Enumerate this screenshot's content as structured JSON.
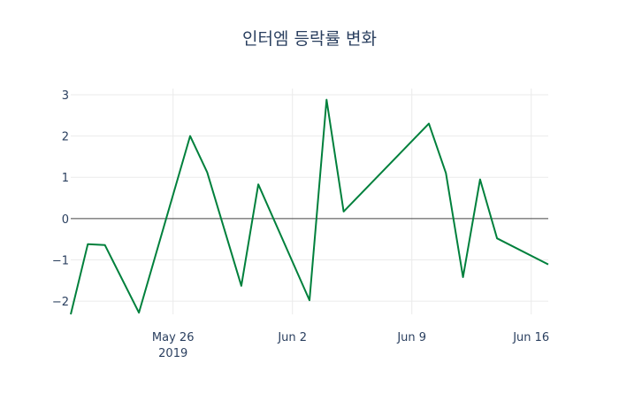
{
  "chart_data": {
    "type": "line",
    "title": "인터엠 등락률 변화",
    "xlabel": "",
    "ylabel": "",
    "x": [
      "2019-05-20",
      "2019-05-21",
      "2019-05-22",
      "2019-05-24",
      "2019-05-27",
      "2019-05-28",
      "2019-05-30",
      "2019-05-31",
      "2019-06-03",
      "2019-06-04",
      "2019-06-05",
      "2019-06-10",
      "2019-06-11",
      "2019-06-12",
      "2019-06-13",
      "2019-06-14",
      "2019-06-17"
    ],
    "series": [
      {
        "name": "등락률",
        "color": "#00803c",
        "values": [
          -2.32,
          -0.62,
          -0.64,
          -2.28,
          2.0,
          1.12,
          -1.63,
          0.83,
          -1.98,
          2.88,
          0.17,
          2.3,
          1.1,
          -1.42,
          0.95,
          -0.48,
          -1.11
        ]
      }
    ],
    "xlim": [
      "2019-05-20",
      "2019-06-17"
    ],
    "ylim": [
      -2.32,
      3.15
    ],
    "xticks": [
      {
        "date": "2019-05-26",
        "label": "May 26",
        "sublabel": "2019"
      },
      {
        "date": "2019-06-02",
        "label": "Jun 2"
      },
      {
        "date": "2019-06-09",
        "label": "Jun 9"
      },
      {
        "date": "2019-06-16",
        "label": "Jun 16"
      }
    ],
    "yticks": [
      {
        "value": -2,
        "label": "−2"
      },
      {
        "value": -1,
        "label": "−1"
      },
      {
        "value": 0,
        "label": "0"
      },
      {
        "value": 1,
        "label": "1"
      },
      {
        "value": 2,
        "label": "2"
      },
      {
        "value": 3,
        "label": "3"
      }
    ],
    "grid": true,
    "zeroline": true
  }
}
